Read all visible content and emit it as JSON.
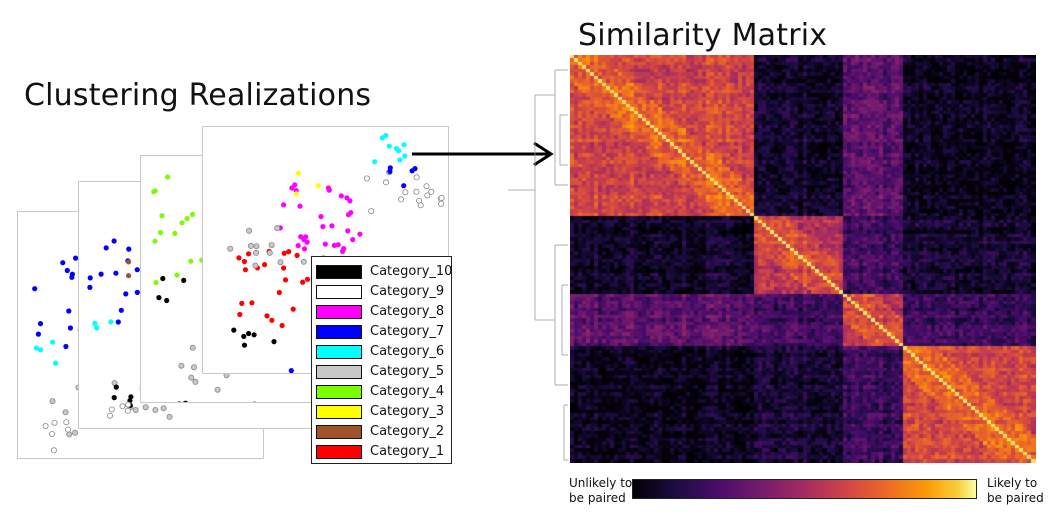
{
  "titles": {
    "left": "Clustering Realizations",
    "right": "Similarity Matrix"
  },
  "legend": {
    "items": [
      {
        "label": "Category_10",
        "color": "#000000"
      },
      {
        "label": "Category_9",
        "color": "#ffffff"
      },
      {
        "label": "Category_8",
        "color": "#ff00ff"
      },
      {
        "label": "Category_7",
        "color": "#0000ff"
      },
      {
        "label": "Category_6",
        "color": "#00ffff"
      },
      {
        "label": "Category_5",
        "color": "#c8c8c8"
      },
      {
        "label": "Category_4",
        "color": "#7cfc00"
      },
      {
        "label": "Category_3",
        "color": "#ffff00"
      },
      {
        "label": "Category_2",
        "color": "#a0522d"
      },
      {
        "label": "Category_1",
        "color": "#ff0000"
      }
    ]
  },
  "colorbar": {
    "low_label": "Unlikely to be paired",
    "low_line1": "Unlikely to",
    "low_line2": "be paired",
    "high_label": "Likely to be paired",
    "high_line1": "Likely to",
    "high_line2": "be paired",
    "colormap": "inferno"
  },
  "matrix": {
    "block_structure": [
      "cluster-1",
      "cluster-2",
      "cluster-3",
      "cluster-4"
    ]
  }
}
